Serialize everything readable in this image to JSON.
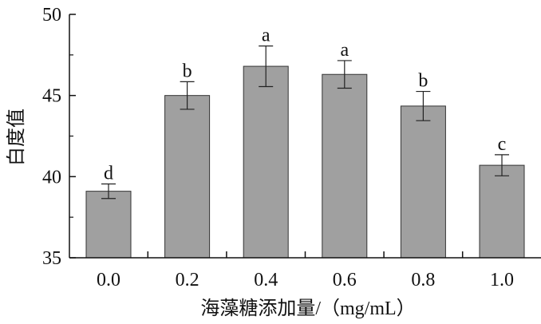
{
  "chart_data": {
    "type": "bar",
    "categories": [
      "0.0",
      "0.2",
      "0.4",
      "0.6",
      "0.8",
      "1.0"
    ],
    "values": [
      39.1,
      45.0,
      46.8,
      46.3,
      44.35,
      40.7
    ],
    "errors": [
      0.45,
      0.85,
      1.25,
      0.85,
      0.9,
      0.65
    ],
    "significance": [
      "d",
      "b",
      "a",
      "a",
      "b",
      "c"
    ],
    "ylim": [
      35,
      50
    ],
    "yticks": [
      35,
      40,
      45,
      50
    ],
    "ylabel": "白度值",
    "xlabel": "海藻糖添加量/（mg/mL）",
    "title": "",
    "grid": false,
    "bar_color": "#a0a0a0",
    "bar_edge_color": "#333333",
    "axis_color": "#111111"
  }
}
